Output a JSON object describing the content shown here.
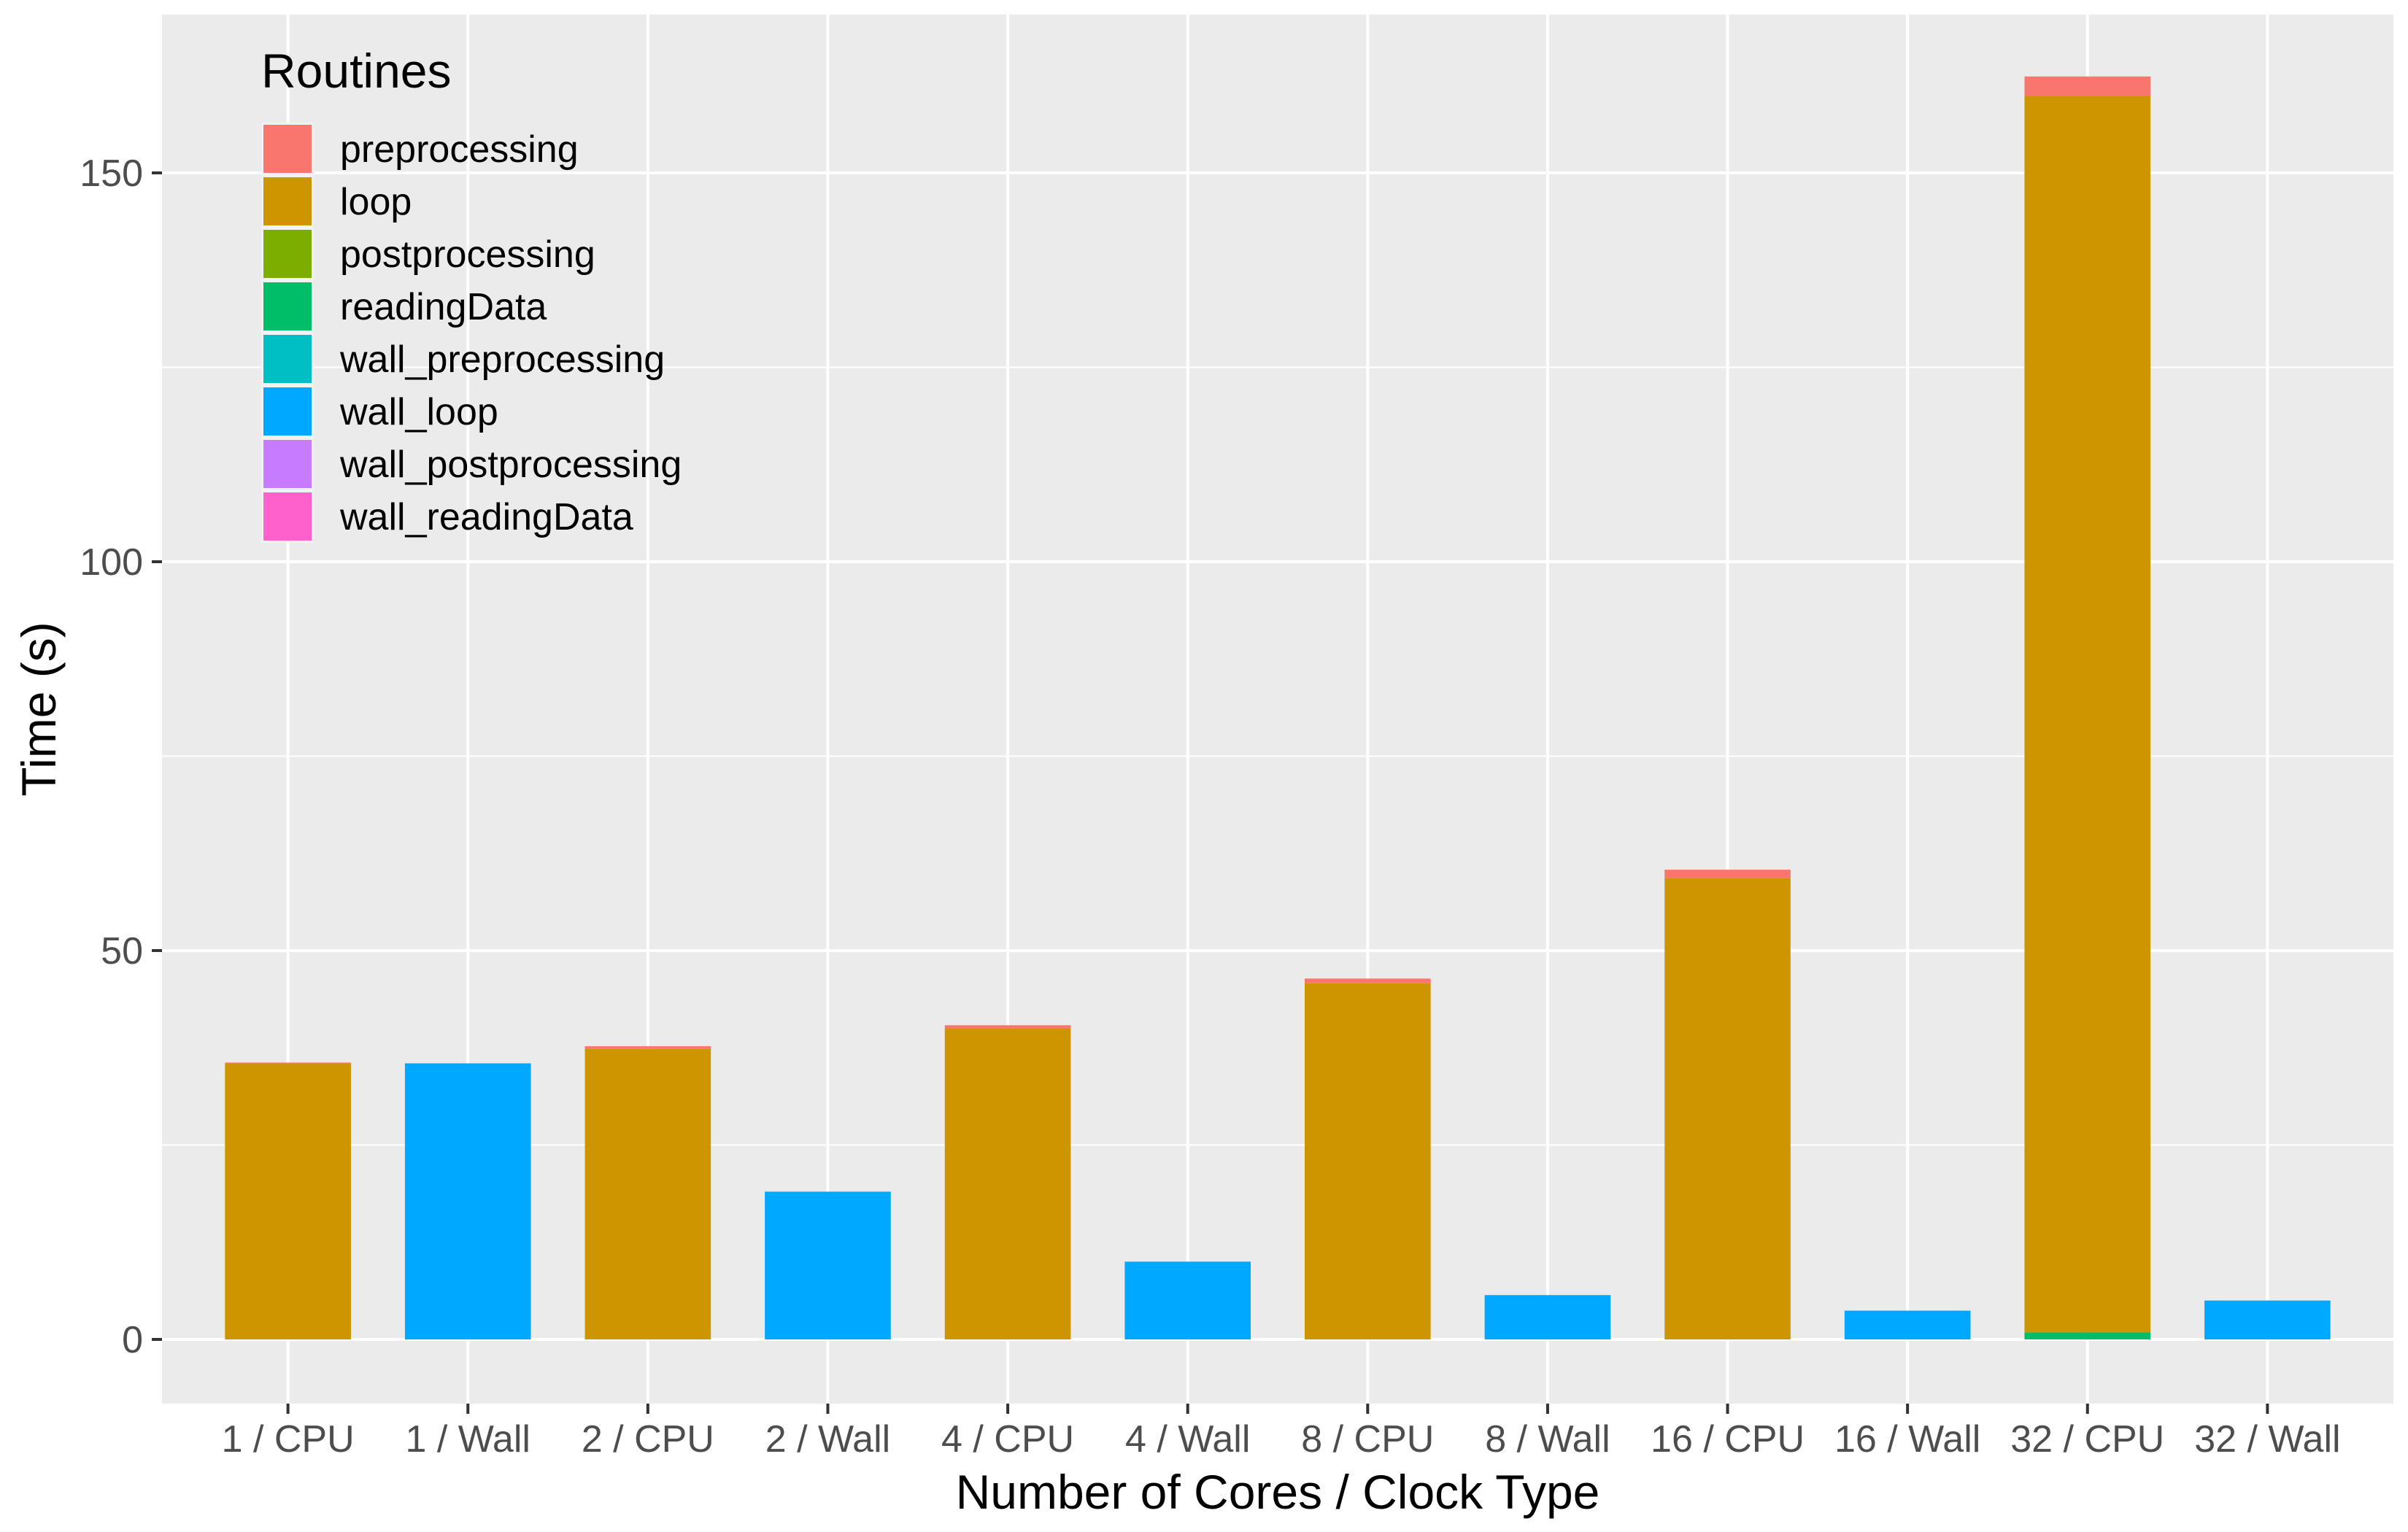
{
  "chart_data": {
    "type": "bar",
    "stacked": true,
    "xlabel": "Number of Cores / Clock Type",
    "ylabel": "Time (s)",
    "ylim": [
      -8,
      170
    ],
    "yticks": [
      0,
      50,
      100,
      150
    ],
    "grid": true,
    "legend_title": "Routines",
    "legend_position": "top-left",
    "categories": [
      "1 / CPU",
      "1 / Wall",
      "2 / CPU",
      "2 / Wall",
      "4 / CPU",
      "4 / Wall",
      "8 / CPU",
      "8 / Wall",
      "16 / CPU",
      "16 / Wall",
      "32 / CPU",
      "32 / Wall"
    ],
    "series": [
      {
        "name": "preprocessing",
        "color": "#F8766D",
        "values": [
          0.1,
          0,
          0.3,
          0,
          0.4,
          0,
          0.6,
          0,
          1.1,
          0,
          2.5,
          0
        ]
      },
      {
        "name": "loop",
        "color": "#CD9600",
        "values": [
          35.5,
          0,
          37.4,
          0,
          40.0,
          0,
          45.8,
          0,
          59.3,
          0,
          159.0,
          0
        ]
      },
      {
        "name": "postprocessing",
        "color": "#7CAE00",
        "values": [
          0,
          0,
          0,
          0,
          0,
          0,
          0,
          0,
          0,
          0,
          0,
          0
        ]
      },
      {
        "name": "readingData",
        "color": "#00BE67",
        "values": [
          0,
          0,
          0,
          0,
          0,
          0,
          0,
          0,
          0,
          0,
          0.9,
          0
        ]
      },
      {
        "name": "wall_preprocessing",
        "color": "#00BFC4",
        "values": [
          0,
          0,
          0,
          0,
          0,
          0,
          0,
          0,
          0,
          0,
          0,
          0
        ]
      },
      {
        "name": "wall_loop",
        "color": "#00A9FF",
        "values": [
          0,
          35.5,
          0,
          19.0,
          0,
          10.0,
          0,
          5.7,
          0,
          3.7,
          0,
          5.0
        ]
      },
      {
        "name": "wall_postprocessing",
        "color": "#C77CFF",
        "values": [
          0,
          0,
          0,
          0,
          0,
          0,
          0,
          0,
          0,
          0,
          0,
          0
        ]
      },
      {
        "name": "wall_readingData",
        "color": "#FF61CC",
        "values": [
          0,
          0,
          0,
          0,
          0,
          0,
          0,
          0,
          0,
          0,
          0,
          0
        ]
      }
    ]
  },
  "colors": {
    "panel_background": "#EBEBEB",
    "grid_line": "#FFFFFF"
  }
}
